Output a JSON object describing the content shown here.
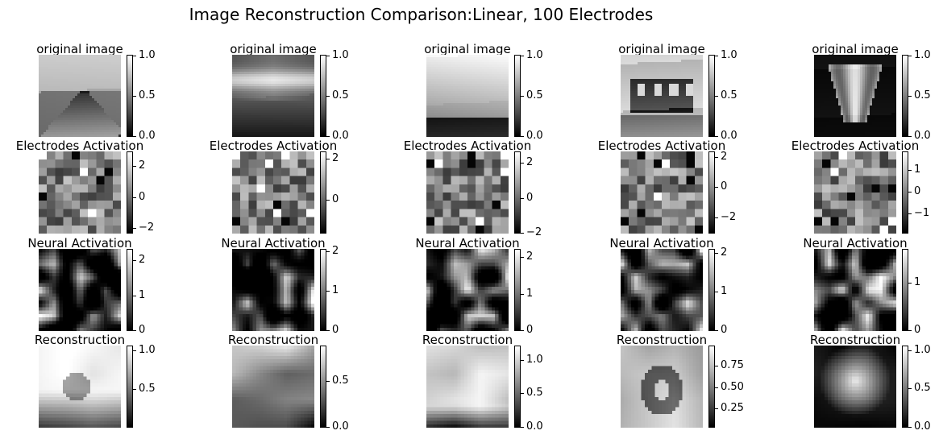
{
  "chart_data": {
    "type": "heatmap",
    "title": "Image Reconstruction Comparison:Linear, 100 Electrodes",
    "colormap": "gray",
    "columns": 5,
    "rows": [
      {
        "title": "original image",
        "kind": "original",
        "colorbars": [
          {
            "min": 0.0,
            "max": 1.0,
            "ticks": [
              "0.0",
              "0.5",
              "1.0"
            ]
          },
          {
            "min": 0.0,
            "max": 1.0,
            "ticks": [
              "0.0",
              "0.5",
              "1.0"
            ]
          },
          {
            "min": 0.0,
            "max": 1.0,
            "ticks": [
              "0.0",
              "0.5",
              "1.0"
            ]
          },
          {
            "min": 0.0,
            "max": 1.0,
            "ticks": [
              "0.0",
              "0.5",
              "1.0"
            ]
          },
          {
            "min": 0.0,
            "max": 1.0,
            "ticks": [
              "0.0",
              "0.5",
              "1.0"
            ]
          }
        ]
      },
      {
        "title": "Electrodes Activation",
        "kind": "electrodes",
        "colorbars": [
          {
            "min": -2.3,
            "max": 2.9,
            "ticks": [
              "−2",
              "0",
              "2"
            ]
          },
          {
            "min": -1.6,
            "max": 2.3,
            "ticks": [
              "0",
              "2"
            ]
          },
          {
            "min": -2.0,
            "max": 2.6,
            "ticks": [
              "−2",
              "0",
              "2"
            ]
          },
          {
            "min": -3.0,
            "max": 2.3,
            "ticks": [
              "−2",
              "0",
              "2"
            ]
          },
          {
            "min": -1.9,
            "max": 1.8,
            "ticks": [
              "−1",
              "0",
              "1"
            ]
          }
        ]
      },
      {
        "title": "Neural Activation",
        "kind": "neural",
        "colorbars": [
          {
            "min": 0.0,
            "max": 2.3,
            "ticks": [
              "0",
              "1",
              "2"
            ]
          },
          {
            "min": 0.0,
            "max": 2.05,
            "ticks": [
              "0",
              "1",
              "2"
            ]
          },
          {
            "min": 0.0,
            "max": 2.2,
            "ticks": [
              "0",
              "1",
              "2"
            ]
          },
          {
            "min": 0.0,
            "max": 2.08,
            "ticks": [
              "0",
              "1",
              "2"
            ]
          },
          {
            "min": 0.0,
            "max": 1.7,
            "ticks": [
              "0",
              "1"
            ]
          }
        ]
      },
      {
        "title": "Reconstruction",
        "kind": "reconstruction",
        "colorbars": [
          {
            "min": 0.02,
            "max": 1.05,
            "ticks": [
              "0.5",
              "1.0"
            ]
          },
          {
            "min": 0.0,
            "max": 0.88,
            "ticks": [
              "0.0",
              "0.5"
            ]
          },
          {
            "min": 0.0,
            "max": 1.2,
            "ticks": [
              "0.0",
              "0.5",
              "1.0"
            ]
          },
          {
            "min": 0.03,
            "max": 0.98,
            "ticks": [
              "0.25",
              "0.50",
              "0.75"
            ]
          },
          {
            "min": 0.0,
            "max": 1.05,
            "ticks": [
              "0.0",
              "0.5",
              "1.0"
            ]
          }
        ]
      }
    ]
  }
}
